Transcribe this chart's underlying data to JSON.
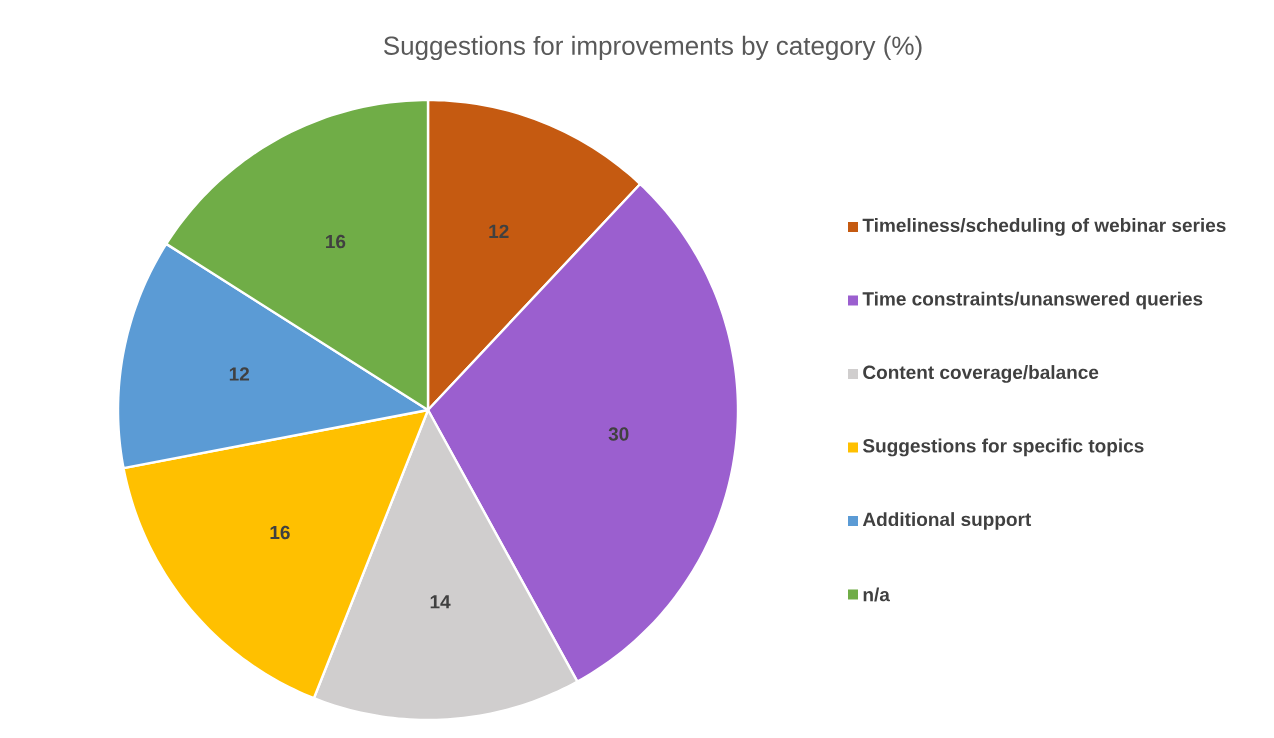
{
  "chart_data": {
    "type": "pie",
    "title": "Suggestions for improvements by category (%)",
    "categories": [
      "Timeliness/scheduling of webinar series",
      "Time constraints/unanswered queries",
      "Content coverage/balance",
      "Suggestions for specific topics",
      "Additional support",
      "n/a"
    ],
    "values": [
      12,
      30,
      14,
      16,
      12,
      16
    ],
    "colors": [
      "#c55a11",
      "#9b5fcf",
      "#d0cece",
      "#ffc000",
      "#5b9bd5",
      "#70ad47"
    ],
    "data_labels": true,
    "legend": "right"
  }
}
